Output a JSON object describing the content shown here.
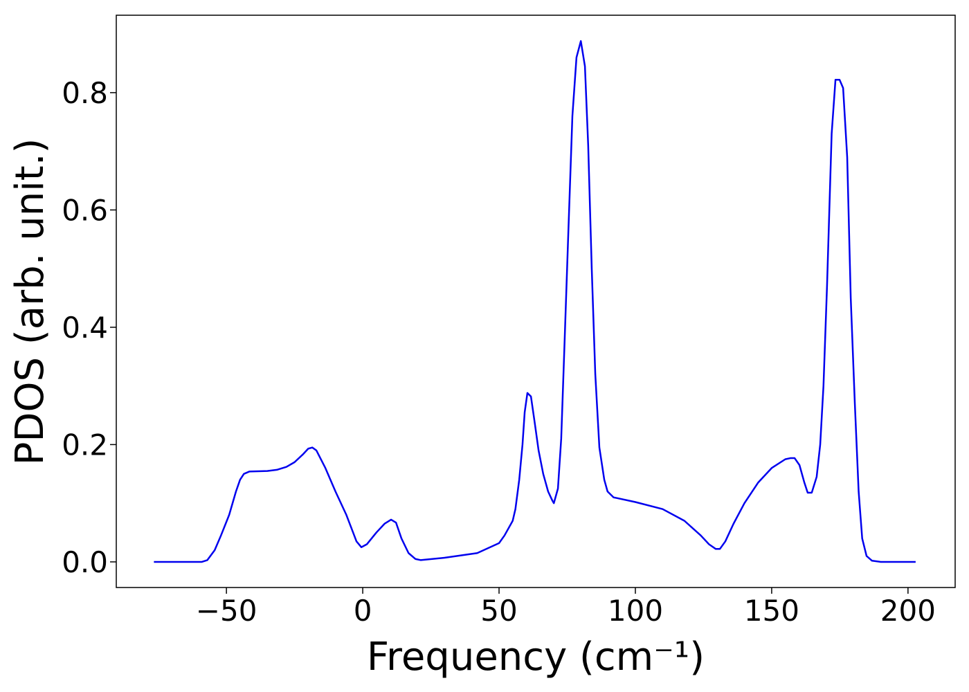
{
  "chart_data": {
    "type": "line",
    "xlabel": "Frequency (cm⁻¹)",
    "ylabel": "PDOS (arb. unit.)",
    "x": [
      -76.6,
      -59,
      -57,
      -54.3,
      -52,
      -49,
      -46.5,
      -45,
      -43.6,
      -41.6,
      -35,
      -31.5,
      -28,
      -25,
      -22,
      -20,
      -18.5,
      -17,
      -13.7,
      -10,
      -6,
      -2.3,
      -0.5,
      1.5,
      5,
      8,
      10.4,
      12.2,
      14.2,
      16.8,
      19.3,
      21.3,
      30,
      42,
      50,
      52,
      55,
      56,
      57.4,
      58.6,
      59.4,
      60.4,
      61.7,
      63,
      64.5,
      66.2,
      68,
      69.5,
      70.1,
      71.6,
      72.8,
      74,
      75.4,
      76.9,
      78.4,
      80,
      81.5,
      82.7,
      84,
      85.3,
      86.8,
      88.6,
      89.8,
      92,
      100,
      110,
      118,
      124,
      127,
      129.5,
      131,
      133,
      136,
      140,
      145,
      150,
      155,
      157,
      158.4,
      160.2,
      162,
      163.2,
      164.7,
      166.5,
      167.8,
      169,
      170.3,
      172,
      173.4,
      174.9,
      176.2,
      177.7,
      179,
      180.5,
      181.9,
      183.2,
      184.8,
      186.8,
      190,
      202.8
    ],
    "values": [
      0,
      0,
      0.003,
      0.02,
      0.045,
      0.08,
      0.12,
      0.14,
      0.15,
      0.154,
      0.155,
      0.157,
      0.162,
      0.17,
      0.183,
      0.193,
      0.195,
      0.19,
      0.16,
      0.12,
      0.08,
      0.035,
      0.025,
      0.03,
      0.05,
      0.065,
      0.072,
      0.067,
      0.04,
      0.015,
      0.005,
      0.003,
      0.007,
      0.015,
      0.032,
      0.045,
      0.07,
      0.09,
      0.14,
      0.2,
      0.255,
      0.288,
      0.282,
      0.24,
      0.19,
      0.15,
      0.12,
      0.105,
      0.1,
      0.125,
      0.21,
      0.37,
      0.56,
      0.76,
      0.86,
      0.888,
      0.845,
      0.71,
      0.5,
      0.32,
      0.195,
      0.14,
      0.12,
      0.11,
      0.102,
      0.09,
      0.07,
      0.045,
      0.03,
      0.022,
      0.022,
      0.035,
      0.065,
      0.1,
      0.135,
      0.16,
      0.175,
      0.177,
      0.177,
      0.165,
      0.135,
      0.118,
      0.118,
      0.145,
      0.2,
      0.3,
      0.47,
      0.73,
      0.822,
      0.822,
      0.808,
      0.69,
      0.45,
      0.27,
      0.12,
      0.04,
      0.01,
      0.002,
      0,
      0
    ],
    "color": "#0000ee",
    "xlim": [
      -90.4,
      217.3
    ],
    "ylim": [
      -0.0437,
      0.932
    ],
    "xticks": [
      {
        "value": -50,
        "label": "−50"
      },
      0,
      50,
      100,
      150,
      200
    ],
    "yticks": [
      {
        "value": 0,
        "label": "0.0"
      },
      0.2,
      0.4,
      0.6,
      0.8
    ]
  }
}
